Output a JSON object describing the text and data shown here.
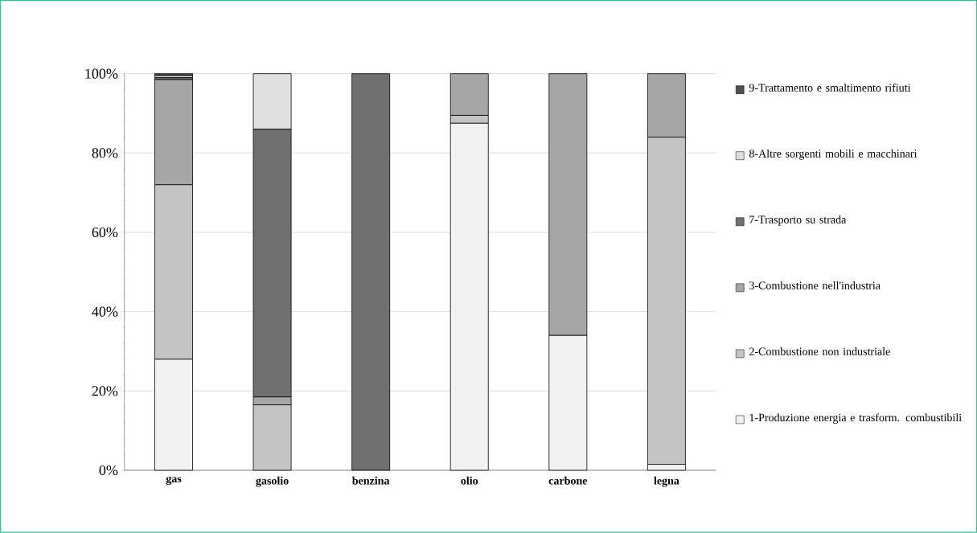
{
  "chart_data": {
    "type": "bar",
    "stacked": true,
    "categories": [
      "gas",
      "gasolio",
      "benzina",
      "olio",
      "carbone",
      "legna"
    ],
    "series": [
      {
        "name": "1-Produzione energia e trasform. combustibili",
        "color": "#f2f2f2",
        "values": [
          28,
          0,
          0,
          87.5,
          34,
          1.5
        ]
      },
      {
        "name": "2-Combustione non industriale",
        "color": "#c4c4c4",
        "values": [
          44,
          16.5,
          0,
          2,
          0,
          82.5
        ]
      },
      {
        "name": "3-Combustione nell'industria",
        "color": "#a6a6a6",
        "values": [
          26.5,
          2,
          0,
          10.5,
          66,
          16
        ]
      },
      {
        "name": "7-Trasporto su strada",
        "color": "#707070",
        "values": [
          0.5,
          67.5,
          100,
          0,
          0,
          0
        ]
      },
      {
        "name": "8-Altre sorgenti mobili e macchinari",
        "color": "#e0e0e0",
        "values": [
          0.5,
          14,
          0,
          0,
          0,
          0
        ]
      },
      {
        "name": "9-Trattamento e smaltimento rifiuti",
        "color": "#505050",
        "values": [
          0.5,
          0,
          0,
          0,
          0,
          0
        ]
      }
    ],
    "ylim": [
      0,
      100
    ],
    "yticks": [
      {
        "value": 0,
        "label": "0%"
      },
      {
        "value": 20,
        "label": "20%"
      },
      {
        "value": 40,
        "label": "40%"
      },
      {
        "value": 60,
        "label": "60%"
      },
      {
        "value": 80,
        "label": "80%"
      },
      {
        "value": 100,
        "label": "100%"
      }
    ],
    "grid": "y",
    "legend": "right"
  }
}
